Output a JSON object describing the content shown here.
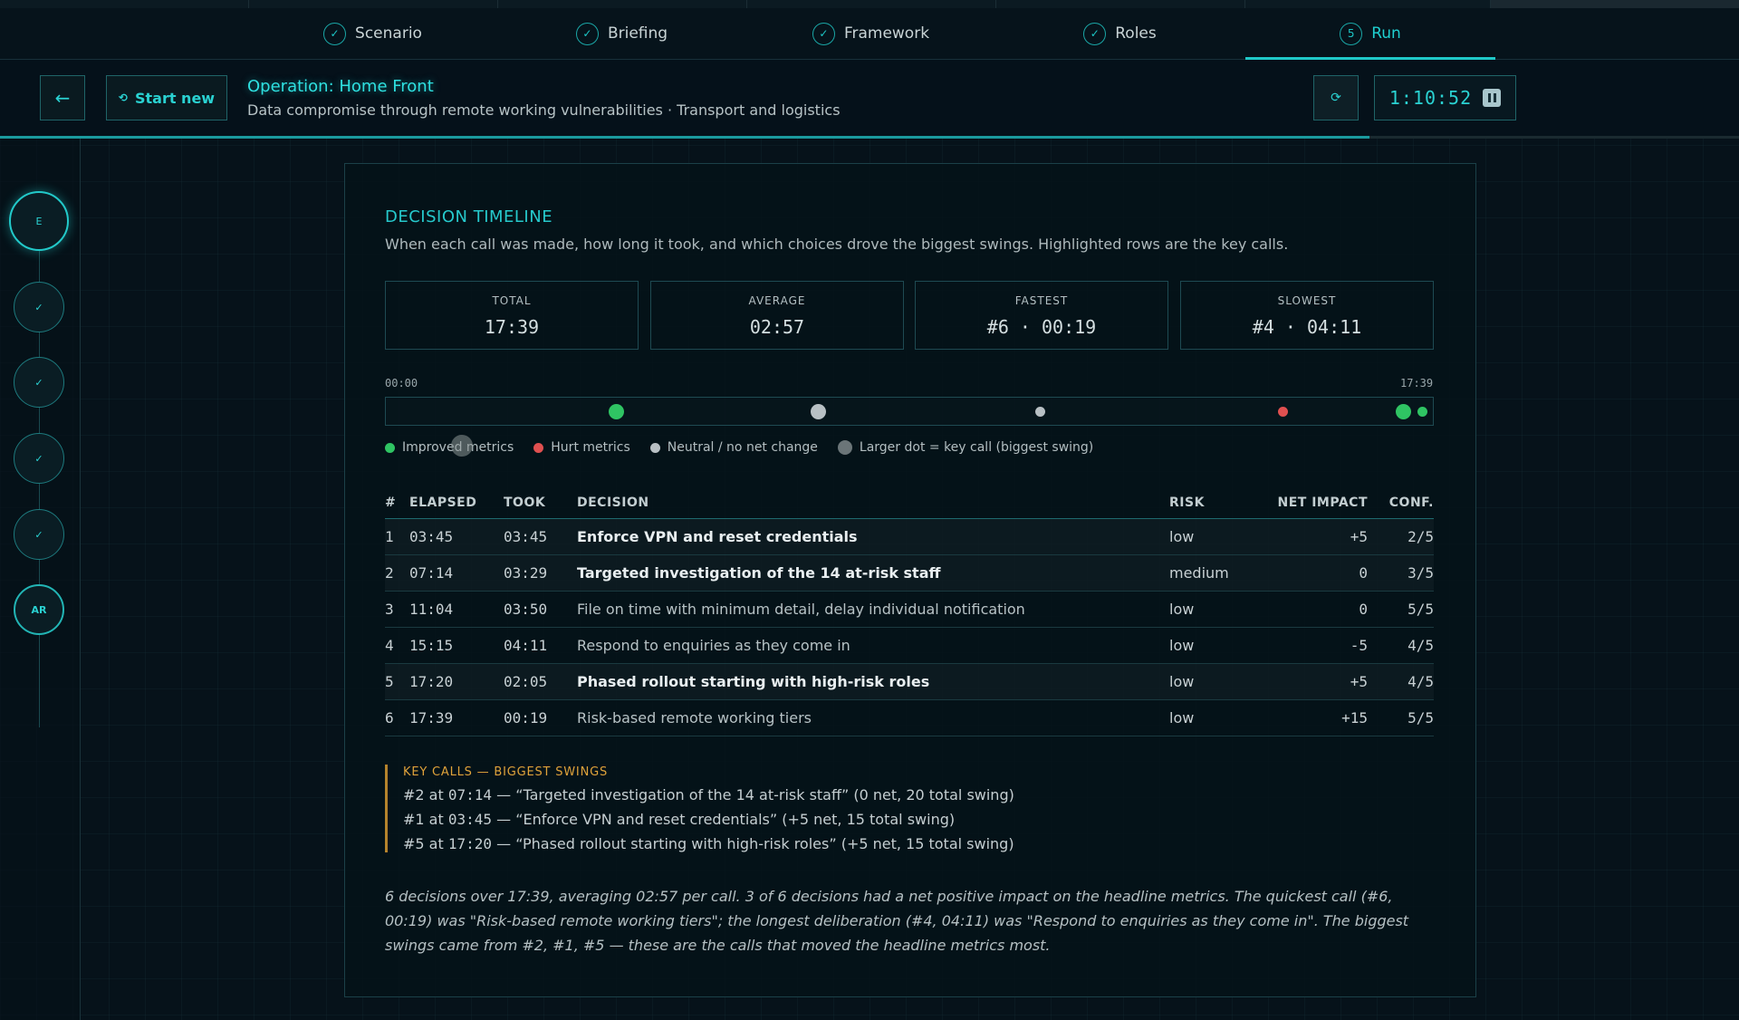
{
  "steps": [
    {
      "label": "Scenario",
      "marker": "✓"
    },
    {
      "label": "Briefing",
      "marker": "✓"
    },
    {
      "label": "Framework",
      "marker": "✓"
    },
    {
      "label": "Roles",
      "marker": "✓"
    },
    {
      "label": "Run",
      "marker": "5"
    }
  ],
  "header": {
    "back_icon": "←",
    "start_new_icon": "⟲",
    "start_new_label": "Start new",
    "title": "Operation: Home Front",
    "subtitle": "Data compromise through remote working vulnerabilities · Transport and logistics",
    "refresh_icon": "⟳",
    "timer": "1:10:52"
  },
  "rail": [
    {
      "label": "E"
    },
    {
      "label": "✓"
    },
    {
      "label": "✓"
    },
    {
      "label": "✓"
    },
    {
      "label": "✓"
    },
    {
      "label": "AR"
    }
  ],
  "timeline": {
    "title": "DECISION TIMELINE",
    "description": "When each call was made, how long it took, and which choices drove the biggest swings. Highlighted rows are the key calls.",
    "stats": [
      {
        "label": "TOTAL",
        "value": "17:39"
      },
      {
        "label": "AVERAGE",
        "value": "02:57"
      },
      {
        "label": "FASTEST",
        "value": "#6 · 00:19"
      },
      {
        "label": "SLOWEST",
        "value": "#4 · 04:11"
      }
    ],
    "axis_start": "00:00",
    "axis_end": "17:39",
    "total_seconds": 1059,
    "legend": [
      {
        "label": "Improved metrics",
        "color": "#2fc463"
      },
      {
        "label": "Hurt metrics",
        "color": "#e05050"
      },
      {
        "label": "Neutral / no net change",
        "color": "#b8c0c4"
      },
      {
        "label": "Larger dot = key call (biggest swing)",
        "color": "#6b7578"
      }
    ],
    "dots": [
      {
        "decision": 1,
        "elapsed_seconds": 225,
        "type": "improved",
        "key": true
      },
      {
        "decision": 2,
        "elapsed_seconds": 434,
        "type": "neutral",
        "key": true
      },
      {
        "decision": 3,
        "elapsed_seconds": 664,
        "type": "neutral",
        "key": false
      },
      {
        "decision": 4,
        "elapsed_seconds": 915,
        "type": "hurt",
        "key": false
      },
      {
        "decision": 5,
        "elapsed_seconds": 1040,
        "type": "improved",
        "key": true
      },
      {
        "decision": 6,
        "elapsed_seconds": 1059,
        "type": "improved",
        "key": false
      }
    ]
  },
  "table": {
    "headers": {
      "num": "#",
      "elapsed": "ELAPSED",
      "took": "TOOK",
      "decision": "DECISION",
      "risk": "RISK",
      "net": "NET IMPACT",
      "conf": "CONF."
    },
    "rows": [
      {
        "num": "1",
        "elapsed": "03:45",
        "took": "03:45",
        "decision": "Enforce VPN and reset credentials",
        "risk": "low",
        "net": "+5",
        "conf": "2/5",
        "key": true,
        "impact": "pos"
      },
      {
        "num": "2",
        "elapsed": "07:14",
        "took": "03:29",
        "decision": "Targeted investigation of the 14 at-risk staff",
        "risk": "medium",
        "net": "0",
        "conf": "3/5",
        "key": true,
        "impact": "neu"
      },
      {
        "num": "3",
        "elapsed": "11:04",
        "took": "03:50",
        "decision": "File on time with minimum detail, delay individual notification",
        "risk": "low",
        "net": "0",
        "conf": "5/5",
        "key": false,
        "impact": "neu"
      },
      {
        "num": "4",
        "elapsed": "15:15",
        "took": "04:11",
        "decision": "Respond to enquiries as they come in",
        "risk": "low",
        "net": "-5",
        "conf": "4/5",
        "key": false,
        "impact": "neg"
      },
      {
        "num": "5",
        "elapsed": "17:20",
        "took": "02:05",
        "decision": "Phased rollout starting with high-risk roles",
        "risk": "low",
        "net": "+5",
        "conf": "4/5",
        "key": true,
        "impact": "pos"
      },
      {
        "num": "6",
        "elapsed": "17:39",
        "took": "00:19",
        "decision": "Risk-based remote working tiers",
        "risk": "low",
        "net": "+15",
        "conf": "5/5",
        "key": false,
        "impact": "pos"
      }
    ]
  },
  "key_calls": {
    "title": "KEY CALLS — BIGGEST SWINGS",
    "items": [
      {
        "prefix": "#2 at ",
        "time": "07:14",
        "text": " — “Targeted investigation of the 14 at-risk staff” (0 net, 20 total swing)"
      },
      {
        "prefix": "#1 at ",
        "time": "03:45",
        "text": " — “Enforce VPN and reset credentials” (+5 net, 15 total swing)"
      },
      {
        "prefix": "#5 at ",
        "time": "17:20",
        "text": " — “Phased rollout starting with high-risk roles” (+5 net, 15 total swing)"
      }
    ]
  },
  "summary": "6 decisions over 17:39, averaging 02:57 per call. 3 of 6 decisions had a net positive impact on the headline metrics. The quickest call (#6, 00:19) was \"Risk-based remote working tiers\"; the longest deliberation (#4, 04:11) was \"Respond to enquiries as they come in\". The biggest swings came from #2, #1, #5 — these are the calls that moved the headline metrics most."
}
